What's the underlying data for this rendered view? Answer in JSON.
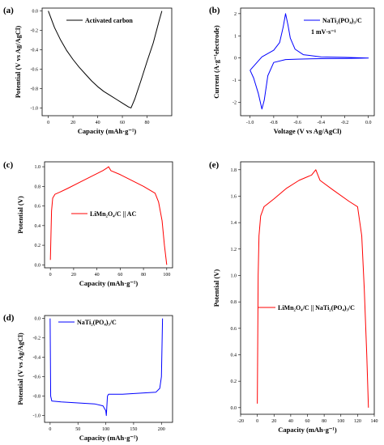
{
  "chart_data": [
    {
      "panel_label": "(a)",
      "type": "line",
      "xlabel": "Capacity (mAh·g⁻¹)",
      "ylabel": "Potential (V vs Ag/AgCl)",
      "xlim": [
        -5,
        100
      ],
      "ylim": [
        -1.08,
        0.03
      ],
      "xticks": [
        0,
        20,
        40,
        60,
        80
      ],
      "yticks": [
        0.0,
        -0.2,
        -0.4,
        -0.6,
        -0.8,
        -1.0
      ],
      "xtick_labels": [
        "0",
        "20",
        "40",
        "60",
        "80"
      ],
      "ytick_labels": [
        "0.0",
        "-0.2",
        "-0.4",
        "-0.6",
        "-0.8",
        "-1.0"
      ],
      "series": [
        {
          "name": "Activated carbon",
          "color": "#000000",
          "x": [
            0,
            5,
            10,
            15,
            20,
            25,
            30,
            35,
            40,
            45,
            50,
            55,
            60,
            65,
            67,
            70,
            75,
            80,
            85,
            90,
            92
          ],
          "y": [
            0.0,
            -0.17,
            -0.3,
            -0.41,
            -0.5,
            -0.58,
            -0.65,
            -0.72,
            -0.78,
            -0.83,
            -0.87,
            -0.91,
            -0.95,
            -0.99,
            -1.0,
            -0.91,
            -0.72,
            -0.52,
            -0.33,
            -0.09,
            0.0
          ]
        }
      ]
    },
    {
      "panel_label": "(b)",
      "type": "line",
      "xlabel": "Voltage (V vs Ag/AgCl)",
      "ylabel": "Current (A·g⁻¹electrode)",
      "xlim": [
        -1.08,
        0.05
      ],
      "ylim": [
        -2.6,
        2.25
      ],
      "xticks": [
        -1.0,
        -0.8,
        -0.6,
        -0.4,
        -0.2,
        0.0
      ],
      "yticks": [
        -2,
        -1,
        0,
        1,
        2
      ],
      "xtick_labels": [
        "-1.0",
        "-0.8",
        "-0.6",
        "-0.4",
        "-0.2",
        "0.0"
      ],
      "ytick_labels": [
        "-2",
        "-1",
        "0",
        "1",
        "2"
      ],
      "annotation": "1 mV·s⁻¹",
      "series": [
        {
          "name": "NaTi₂(PO₄)₃/C",
          "color": "#0000ff",
          "x": [
            -1.0,
            -0.97,
            -0.93,
            -0.9,
            -0.88,
            -0.85,
            -0.8,
            -0.7,
            -0.6,
            -0.4,
            -0.2,
            0.0,
            -0.2,
            -0.4,
            -0.55,
            -0.62,
            -0.66,
            -0.68,
            -0.7,
            -0.72,
            -0.75,
            -0.8,
            -0.9,
            -1.0
          ],
          "y": [
            -0.55,
            -0.9,
            -1.6,
            -2.3,
            -1.9,
            -0.8,
            -0.2,
            -0.07,
            -0.05,
            -0.03,
            -0.02,
            0.0,
            0.03,
            0.05,
            0.15,
            0.4,
            0.9,
            1.5,
            2.0,
            1.4,
            0.7,
            0.35,
            0.05,
            -0.55
          ]
        }
      ]
    },
    {
      "panel_label": "(c)",
      "type": "line",
      "xlabel": "Capacity (mAh·g⁻¹)",
      "ylabel": "Potential (V)",
      "xlim": [
        -5,
        105
      ],
      "ylim": [
        -0.03,
        1.05
      ],
      "xticks": [
        0,
        20,
        40,
        60,
        80,
        100
      ],
      "yticks": [
        0.0,
        0.2,
        0.4,
        0.6,
        0.8,
        1.0
      ],
      "xtick_labels": [
        "0",
        "20",
        "40",
        "60",
        "80",
        "100"
      ],
      "ytick_labels": [
        "0.0",
        "0.2",
        "0.4",
        "0.6",
        "0.8",
        "1.0"
      ],
      "series": [
        {
          "name": "LiMn₂O₄/C || AC",
          "color": "#ff0000",
          "x": [
            0,
            0.5,
            1,
            2,
            4,
            8,
            15,
            25,
            35,
            45,
            49,
            50,
            52,
            60,
            70,
            80,
            90,
            93,
            96,
            98,
            100
          ],
          "y": [
            0.05,
            0.3,
            0.55,
            0.68,
            0.72,
            0.74,
            0.78,
            0.84,
            0.9,
            0.96,
            0.99,
            1.0,
            0.96,
            0.92,
            0.86,
            0.8,
            0.73,
            0.64,
            0.45,
            0.2,
            0.0
          ]
        }
      ]
    },
    {
      "panel_label": "(d)",
      "type": "line",
      "xlabel": "Capacity (mAh·g⁻¹)",
      "ylabel": "Potential (V vs Ag/AgCl)",
      "xlim": [
        -10,
        220
      ],
      "ylim": [
        -1.07,
        0.03
      ],
      "xticks": [
        0,
        50,
        100,
        150,
        200
      ],
      "yticks": [
        0.0,
        -0.2,
        -0.4,
        -0.6,
        -0.8,
        -1.0
      ],
      "xtick_labels": [
        "0",
        "50",
        "100",
        "150",
        "200"
      ],
      "ytick_labels": [
        "0.0",
        "-0.2",
        "-0.4",
        "-0.6",
        "-0.8",
        "-1.0"
      ],
      "series": [
        {
          "name": "NaTi₂(PO₄)₃/C",
          "color": "#0000ff",
          "x": [
            0,
            0.5,
            1,
            3,
            20,
            50,
            80,
            95,
            100,
            101,
            103,
            105,
            130,
            160,
            190,
            197,
            200,
            201,
            202
          ],
          "y": [
            0.0,
            -0.4,
            -0.8,
            -0.85,
            -0.86,
            -0.87,
            -0.88,
            -0.9,
            -0.95,
            -1.0,
            -0.8,
            -0.78,
            -0.78,
            -0.77,
            -0.76,
            -0.72,
            -0.6,
            -0.3,
            0.0
          ]
        }
      ]
    },
    {
      "panel_label": "(e)",
      "type": "line",
      "xlabel": "Capacity (mAh·g⁻¹)",
      "ylabel": "Potential (V)",
      "xlim": [
        -20,
        140
      ],
      "ylim": [
        -0.05,
        1.86
      ],
      "xticks": [
        -20,
        0,
        20,
        40,
        60,
        80,
        100,
        120,
        140
      ],
      "yticks": [
        0.0,
        0.2,
        0.4,
        0.6,
        0.8,
        1.0,
        1.2,
        1.4,
        1.6,
        1.8
      ],
      "xtick_labels": [
        "-20",
        "0",
        "20",
        "40",
        "60",
        "80",
        "100",
        "120",
        "140"
      ],
      "ytick_labels": [
        "0.0",
        "0.2",
        "0.4",
        "0.6",
        "0.8",
        "1.0",
        "1.2",
        "1.4",
        "1.6",
        "1.8"
      ],
      "series": [
        {
          "name": "LiMn₂O₄/C || NaTi₂(PO₄)₃/C",
          "color": "#ff0000",
          "x": [
            0,
            0.5,
            1,
            2,
            4,
            8,
            20,
            35,
            50,
            65,
            70,
            75,
            90,
            110,
            120,
            125,
            128,
            131,
            133
          ],
          "y": [
            0.03,
            0.5,
            1.0,
            1.3,
            1.45,
            1.52,
            1.58,
            1.66,
            1.72,
            1.76,
            1.8,
            1.72,
            1.65,
            1.56,
            1.52,
            1.3,
            0.9,
            0.4,
            0.0
          ]
        }
      ]
    }
  ]
}
